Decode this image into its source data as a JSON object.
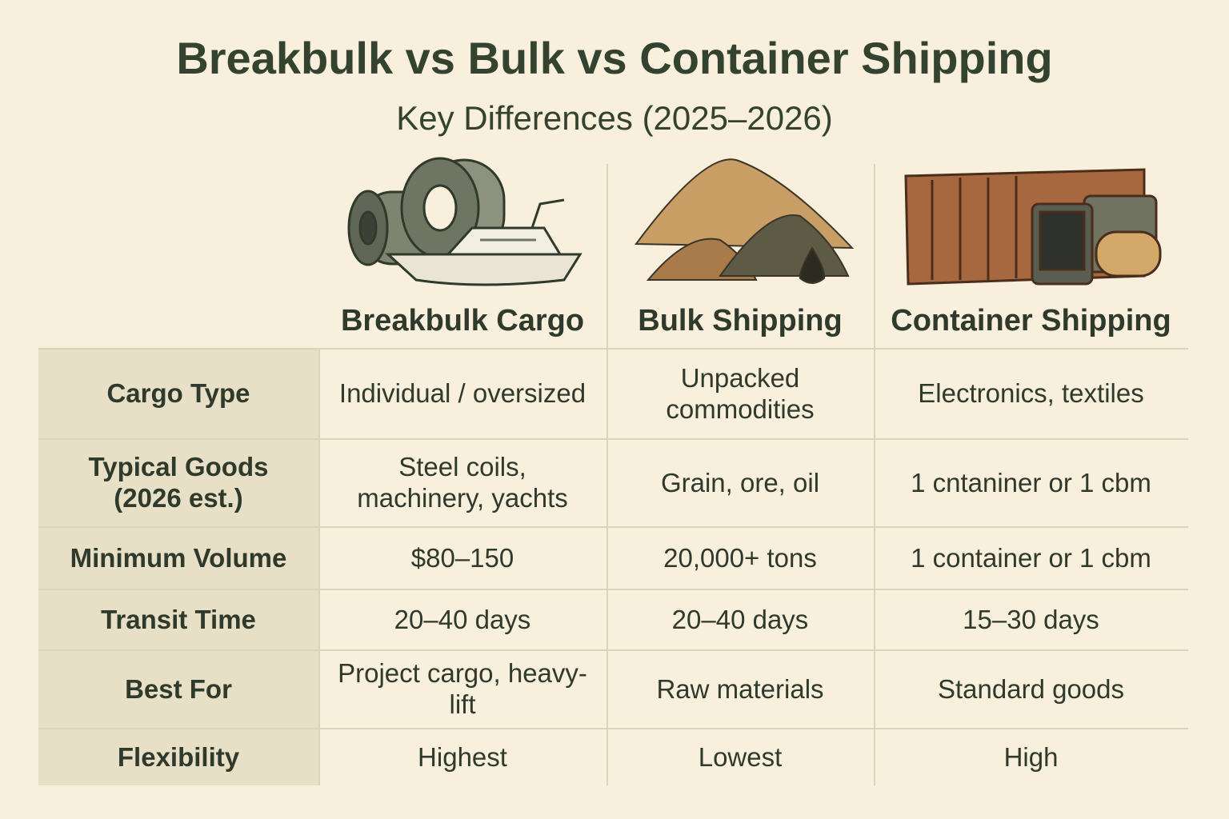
{
  "header": {
    "title": "Breakbulk vs Bulk vs Container Shipping",
    "subtitle": "Key Differences (2025–2026)"
  },
  "table": {
    "columns": [
      "Breakbulk Cargo",
      "Bulk Shipping",
      "Container Shipping"
    ],
    "rows": [
      [
        "Cargo Type",
        "Individual / oversized",
        "Unpacked commodities",
        "Electronics, textiles"
      ],
      [
        "Typical Goods (2026 est.)",
        "Steel coils, machinery, yachts",
        "Grain, ore, oil",
        "1 cntaniner or 1 cbm"
      ],
      [
        "Minimum Volume",
        "$80–150",
        "20,000+ tons",
        "1 container or 1 cbm"
      ],
      [
        "Transit Time",
        "20–40 days",
        "20–40 days",
        "15–30 days"
      ],
      [
        "Best For",
        "Project cargo, heavy-lift",
        "Raw materials",
        "Standard goods"
      ],
      [
        "Flexibility",
        "Highest",
        "Lowest",
        "High"
      ]
    ]
  }
}
